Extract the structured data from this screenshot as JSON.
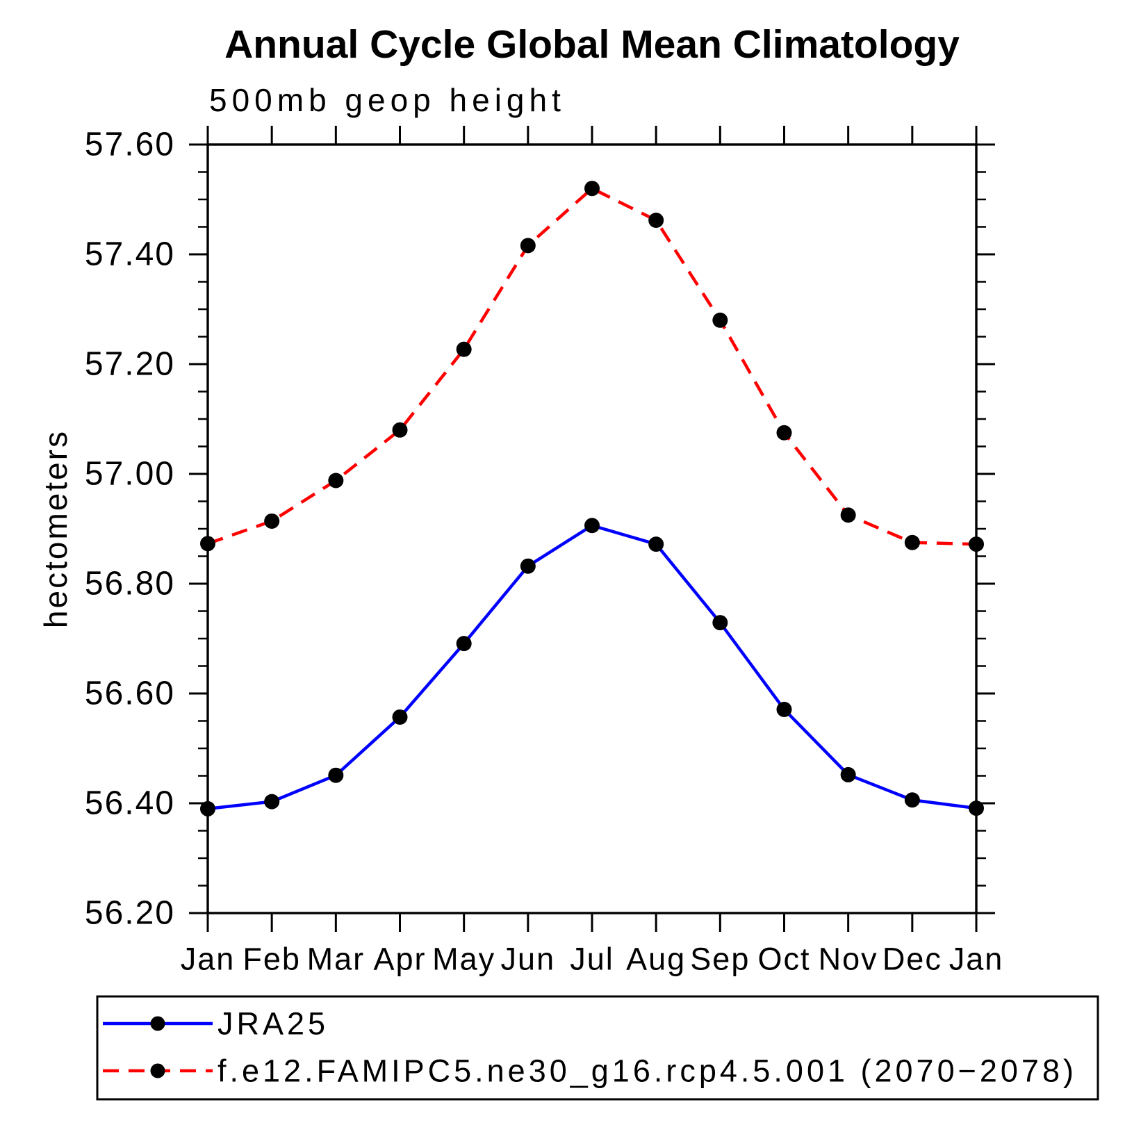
{
  "chart_data": {
    "type": "line",
    "title": "Annual Cycle Global Mean Climatology",
    "subtitle": "500mb geop height",
    "ylabel": "hectometers",
    "xlabel": "",
    "categories": [
      "Jan",
      "Feb",
      "Mar",
      "Apr",
      "May",
      "Jun",
      "Jul",
      "Aug",
      "Sep",
      "Oct",
      "Nov",
      "Dec",
      "Jan"
    ],
    "ylim": [
      56.2,
      57.6
    ],
    "ytick_major_step": 0.2,
    "ytick_minor_step": 0.05,
    "ytick_labels": [
      "56.20",
      "56.40",
      "56.60",
      "56.80",
      "57.00",
      "57.20",
      "57.40",
      "57.60"
    ],
    "grid": false,
    "axis_color": "#000000",
    "tick_style": "outward",
    "legend_position": "bottom-left-box",
    "series": [
      {
        "name": "JRA25",
        "color": "#0000ff",
        "line_style": "solid",
        "marker": "filled-circle",
        "marker_color": "#000000",
        "values": [
          56.39,
          56.403,
          56.451,
          56.557,
          56.691,
          56.832,
          56.906,
          56.872,
          56.729,
          56.571,
          56.452,
          56.406,
          56.391
        ]
      },
      {
        "name": "f.e12.FAMIPC5.ne30_g16.rcp4.5.001 (2070−2078)",
        "color": "#ff0000",
        "line_style": "dashed",
        "marker": "filled-circle",
        "marker_color": "#000000",
        "values": [
          56.873,
          56.914,
          56.988,
          57.08,
          57.227,
          57.416,
          57.52,
          57.462,
          57.28,
          57.075,
          56.925,
          56.875,
          56.872
        ]
      }
    ]
  }
}
